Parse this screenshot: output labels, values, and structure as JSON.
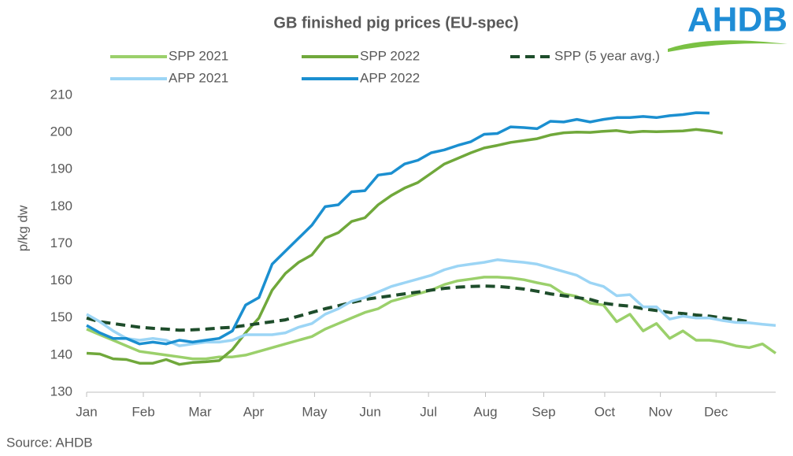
{
  "chart_data": {
    "type": "line",
    "title": "GB finished pig prices (EU-spec)",
    "y_label": "p/kg dw",
    "source": "Source: AHDB",
    "logo": "AHDB",
    "x": [
      1,
      2,
      3,
      4,
      5,
      6,
      7,
      8,
      9,
      10,
      11,
      12,
      13,
      14,
      15,
      16,
      17,
      18,
      19,
      20,
      21,
      22,
      23,
      24,
      25,
      26,
      27,
      28,
      29,
      30,
      31,
      32,
      33,
      34,
      35,
      36,
      37,
      38,
      39,
      40,
      41,
      42,
      43,
      44,
      45,
      46,
      47,
      48,
      49,
      50,
      51,
      52,
      53
    ],
    "xlim": [
      1,
      53
    ],
    "xticks": [
      {
        "value": 1,
        "label": "Jan"
      },
      {
        "value": 5.28,
        "label": "Feb"
      },
      {
        "value": 9.56,
        "label": "Mar"
      },
      {
        "value": 13.6,
        "label": "Apr"
      },
      {
        "value": 18.2,
        "label": "May"
      },
      {
        "value": 22.4,
        "label": "Jun"
      },
      {
        "value": 26.8,
        "label": "Jul"
      },
      {
        "value": 31.1,
        "label": "Aug"
      },
      {
        "value": 35.5,
        "label": "Sep"
      },
      {
        "value": 40.1,
        "label": "Oct"
      },
      {
        "value": 44.3,
        "label": "Nov"
      },
      {
        "value": 48.5,
        "label": "Dec"
      }
    ],
    "ylim": [
      130,
      210
    ],
    "yticks": [
      130,
      140,
      150,
      160,
      170,
      180,
      190,
      200,
      210
    ],
    "series": [
      {
        "name": "SPP 2021",
        "color": "#9bd06b",
        "dashed": false,
        "values": [
          147,
          145.5,
          144,
          142.5,
          141,
          140.5,
          140,
          139.5,
          139,
          139,
          139.5,
          139.5,
          140,
          141,
          142,
          143,
          144,
          145,
          147,
          148.5,
          150,
          151.5,
          152.5,
          154.5,
          155.5,
          156.5,
          157.5,
          159,
          160,
          160.5,
          161,
          161,
          160.8,
          160.3,
          159.5,
          158.8,
          156.5,
          155.8,
          154,
          153.5,
          149,
          151,
          146.5,
          148.5,
          144.5,
          146.5,
          144,
          144,
          143.5,
          142.5,
          142,
          143,
          140.5
        ]
      },
      {
        "name": "SPP 2022",
        "color": "#70a83b",
        "dashed": false,
        "values": [
          140.5,
          140.3,
          139,
          138.8,
          137.8,
          137.8,
          138.8,
          137.5,
          138,
          138.2,
          138.5,
          141.5,
          146,
          150,
          157.5,
          162,
          165,
          167,
          171.5,
          173,
          176,
          177,
          180.5,
          183,
          185,
          186.5,
          189,
          191.5,
          193,
          194.5,
          195.8,
          196.5,
          197.3,
          197.8,
          198.3,
          199.3,
          199.9,
          200.1,
          200,
          200.3,
          200.5,
          200,
          200.3,
          200.2,
          200.3,
          200.4,
          200.8,
          200.4,
          199.8,
          null,
          null,
          null,
          null
        ]
      },
      {
        "name": "SPP (5 year avg.)",
        "color": "#1e4d2b",
        "dashed": true,
        "values": [
          150,
          149,
          148.5,
          148,
          147.5,
          147.2,
          147,
          146.7,
          146.8,
          147,
          147.3,
          147.5,
          148,
          148.5,
          149,
          149.5,
          150.5,
          151.5,
          152.5,
          153.3,
          154.2,
          155,
          155.5,
          156,
          156.5,
          157,
          157.5,
          158,
          158.3,
          158.5,
          158.6,
          158.5,
          158.2,
          157.8,
          157.2,
          156.5,
          156,
          155.5,
          155,
          154,
          153.5,
          153.2,
          152.5,
          152,
          151.5,
          151.2,
          150.8,
          150.5,
          150,
          149.6,
          149,
          null,
          null
        ]
      },
      {
        "name": "APP 2021",
        "color": "#9cd5f5",
        "dashed": false,
        "values": [
          151,
          149,
          146.5,
          144.5,
          144,
          144.5,
          144,
          142.5,
          143,
          143.5,
          143.5,
          144,
          145.5,
          145.5,
          145.5,
          146,
          147.5,
          148.5,
          151,
          152.5,
          154.5,
          155.5,
          157,
          158.5,
          159.5,
          160.5,
          161.5,
          163,
          164,
          164.5,
          165,
          165.7,
          165.3,
          165,
          164.5,
          163.5,
          162.5,
          161.5,
          159.5,
          158.5,
          156,
          156.3,
          153,
          153,
          149.7,
          150.5,
          150,
          150,
          149.3,
          148.8,
          148.7,
          148.3,
          148
        ]
      },
      {
        "name": "APP 2022",
        "color": "#1b8fd0",
        "dashed": false,
        "values": [
          148,
          146,
          144.5,
          144.5,
          143,
          143.5,
          143,
          144,
          143.5,
          144,
          144.5,
          146.5,
          153.5,
          155.5,
          164.5,
          168,
          171.5,
          175,
          180,
          180.5,
          184,
          184.3,
          188.5,
          189,
          191.5,
          192.5,
          194.5,
          195.3,
          196.5,
          197.5,
          199.5,
          199.7,
          201.5,
          201.3,
          201,
          203,
          202.8,
          203.5,
          202.8,
          203.5,
          204,
          204,
          204.3,
          204,
          204.5,
          204.8,
          205.3,
          205.2,
          null,
          null,
          null,
          null,
          null
        ]
      }
    ]
  }
}
